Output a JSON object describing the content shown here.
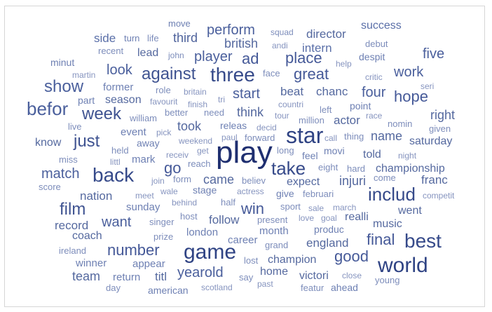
{
  "word_cloud": {
    "words": [
      {
        "text": "move",
        "size": 13
      },
      {
        "text": "success",
        "size": 16
      },
      {
        "text": "perform",
        "size": 20
      },
      {
        "text": "squad",
        "size": 12
      },
      {
        "text": "director",
        "size": 17
      },
      {
        "text": "third",
        "size": 18
      },
      {
        "text": "side",
        "size": 17
      },
      {
        "text": "turn",
        "size": 13
      },
      {
        "text": "life",
        "size": 13
      },
      {
        "text": "british",
        "size": 18
      },
      {
        "text": "andi",
        "size": 12
      },
      {
        "text": "intern",
        "size": 17
      },
      {
        "text": "debut",
        "size": 13
      },
      {
        "text": "recent",
        "size": 13
      },
      {
        "text": "lead",
        "size": 16
      },
      {
        "text": "john",
        "size": 12
      },
      {
        "text": "player",
        "size": 20
      },
      {
        "text": "ad",
        "size": 22
      },
      {
        "text": "place",
        "size": 22
      },
      {
        "text": "despit",
        "size": 14
      },
      {
        "text": "five",
        "size": 20
      },
      {
        "text": "minut",
        "size": 14
      },
      {
        "text": "help",
        "size": 12
      },
      {
        "text": "look",
        "size": 20
      },
      {
        "text": "against",
        "size": 24
      },
      {
        "text": "three",
        "size": 28
      },
      {
        "text": "face",
        "size": 13
      },
      {
        "text": "great",
        "size": 22
      },
      {
        "text": "work",
        "size": 20
      },
      {
        "text": "martin",
        "size": 12
      },
      {
        "text": "critic",
        "size": 12
      },
      {
        "text": "show",
        "size": 24
      },
      {
        "text": "former",
        "size": 15
      },
      {
        "text": "role",
        "size": 13
      },
      {
        "text": "britain",
        "size": 12
      },
      {
        "text": "start",
        "size": 20
      },
      {
        "text": "beat",
        "size": 17
      },
      {
        "text": "chanc",
        "size": 17
      },
      {
        "text": "four",
        "size": 20
      },
      {
        "text": "seri",
        "size": 12
      },
      {
        "text": "part",
        "size": 14
      },
      {
        "text": "season",
        "size": 16
      },
      {
        "text": "favourit",
        "size": 12
      },
      {
        "text": "tri",
        "size": 12
      },
      {
        "text": "hope",
        "size": 22
      },
      {
        "text": "befor",
        "size": 26
      },
      {
        "text": "finish",
        "size": 12
      },
      {
        "text": "countri",
        "size": 12
      },
      {
        "text": "point",
        "size": 14
      },
      {
        "text": "week",
        "size": 24
      },
      {
        "text": "william",
        "size": 13
      },
      {
        "text": "better",
        "size": 13
      },
      {
        "text": "need",
        "size": 13
      },
      {
        "text": "think",
        "size": 18
      },
      {
        "text": "left",
        "size": 13
      },
      {
        "text": "race",
        "size": 12
      },
      {
        "text": "right",
        "size": 18
      },
      {
        "text": "tour",
        "size": 12
      },
      {
        "text": "million",
        "size": 13
      },
      {
        "text": "actor",
        "size": 17
      },
      {
        "text": "live",
        "size": 13
      },
      {
        "text": "took",
        "size": 18
      },
      {
        "text": "releas",
        "size": 14
      },
      {
        "text": "decid",
        "size": 12
      },
      {
        "text": "nomin",
        "size": 13
      },
      {
        "text": "given",
        "size": 13
      },
      {
        "text": "event",
        "size": 15
      },
      {
        "text": "pick",
        "size": 12
      },
      {
        "text": "star",
        "size": 32
      },
      {
        "text": "call",
        "size": 12
      },
      {
        "text": "thing",
        "size": 13
      },
      {
        "text": "name",
        "size": 18
      },
      {
        "text": "know",
        "size": 16
      },
      {
        "text": "just",
        "size": 24
      },
      {
        "text": "away",
        "size": 14
      },
      {
        "text": "weekend",
        "size": 12
      },
      {
        "text": "paul",
        "size": 12
      },
      {
        "text": "forward",
        "size": 13
      },
      {
        "text": "saturday",
        "size": 16
      },
      {
        "text": "held",
        "size": 13
      },
      {
        "text": "receiv",
        "size": 12
      },
      {
        "text": "get",
        "size": 12
      },
      {
        "text": "play",
        "size": 44
      },
      {
        "text": "long",
        "size": 13
      },
      {
        "text": "movi",
        "size": 14
      },
      {
        "text": "told",
        "size": 16
      },
      {
        "text": "night",
        "size": 12
      },
      {
        "text": "miss",
        "size": 13
      },
      {
        "text": "mark",
        "size": 15
      },
      {
        "text": "littl",
        "size": 12
      },
      {
        "text": "reach",
        "size": 13
      },
      {
        "text": "go",
        "size": 22
      },
      {
        "text": "take",
        "size": 26
      },
      {
        "text": "feel",
        "size": 14
      },
      {
        "text": "eight",
        "size": 13
      },
      {
        "text": "hard",
        "size": 13
      },
      {
        "text": "championship",
        "size": 16
      },
      {
        "text": "match",
        "size": 20
      },
      {
        "text": "back",
        "size": 28
      },
      {
        "text": "join",
        "size": 12
      },
      {
        "text": "form",
        "size": 13
      },
      {
        "text": "came",
        "size": 18
      },
      {
        "text": "believ",
        "size": 13
      },
      {
        "text": "expect",
        "size": 16
      },
      {
        "text": "injuri",
        "size": 18
      },
      {
        "text": "come",
        "size": 13
      },
      {
        "text": "franc",
        "size": 17
      },
      {
        "text": "score",
        "size": 13
      },
      {
        "text": "wale",
        "size": 12
      },
      {
        "text": "stage",
        "size": 14
      },
      {
        "text": "actress",
        "size": 12
      },
      {
        "text": "februari",
        "size": 13
      },
      {
        "text": "includ",
        "size": 26
      },
      {
        "text": "nation",
        "size": 17
      },
      {
        "text": "meet",
        "size": 12
      },
      {
        "text": "half",
        "size": 13
      },
      {
        "text": "give",
        "size": 14
      },
      {
        "text": "competit",
        "size": 12
      },
      {
        "text": "film",
        "size": 24
      },
      {
        "text": "sunday",
        "size": 15
      },
      {
        "text": "behind",
        "size": 12
      },
      {
        "text": "win",
        "size": 22
      },
      {
        "text": "sport",
        "size": 13
      },
      {
        "text": "sale",
        "size": 12
      },
      {
        "text": "march",
        "size": 12
      },
      {
        "text": "went",
        "size": 16
      },
      {
        "text": "record",
        "size": 17
      },
      {
        "text": "want",
        "size": 20
      },
      {
        "text": "singer",
        "size": 13
      },
      {
        "text": "host",
        "size": 13
      },
      {
        "text": "follow",
        "size": 17
      },
      {
        "text": "present",
        "size": 13
      },
      {
        "text": "love",
        "size": 12
      },
      {
        "text": "goal",
        "size": 12
      },
      {
        "text": "realli",
        "size": 16
      },
      {
        "text": "music",
        "size": 16
      },
      {
        "text": "coach",
        "size": 16
      },
      {
        "text": "london",
        "size": 15
      },
      {
        "text": "month",
        "size": 15
      },
      {
        "text": "produc",
        "size": 14
      },
      {
        "text": "prize",
        "size": 13
      },
      {
        "text": "career",
        "size": 15
      },
      {
        "text": "final",
        "size": 22
      },
      {
        "text": "best",
        "size": 28
      },
      {
        "text": "number",
        "size": 22
      },
      {
        "text": "grand",
        "size": 13
      },
      {
        "text": "england",
        "size": 17
      },
      {
        "text": "ireland",
        "size": 13
      },
      {
        "text": "game",
        "size": 30
      },
      {
        "text": "good",
        "size": 22
      },
      {
        "text": "winner",
        "size": 15
      },
      {
        "text": "appear",
        "size": 15
      },
      {
        "text": "champion",
        "size": 16
      },
      {
        "text": "world",
        "size": 30
      },
      {
        "text": "lost",
        "size": 13
      },
      {
        "text": "yearold",
        "size": 20
      },
      {
        "text": "home",
        "size": 16
      },
      {
        "text": "team",
        "size": 18
      },
      {
        "text": "return",
        "size": 15
      },
      {
        "text": "titl",
        "size": 17
      },
      {
        "text": "say",
        "size": 13
      },
      {
        "text": "victori",
        "size": 16
      },
      {
        "text": "close",
        "size": 12
      },
      {
        "text": "young",
        "size": 13
      },
      {
        "text": "day",
        "size": 13
      },
      {
        "text": "american",
        "size": 14
      },
      {
        "text": "scotland",
        "size": 12
      },
      {
        "text": "past",
        "size": 12
      },
      {
        "text": "featur",
        "size": 13
      },
      {
        "text": "ahead",
        "size": 14
      }
    ]
  }
}
